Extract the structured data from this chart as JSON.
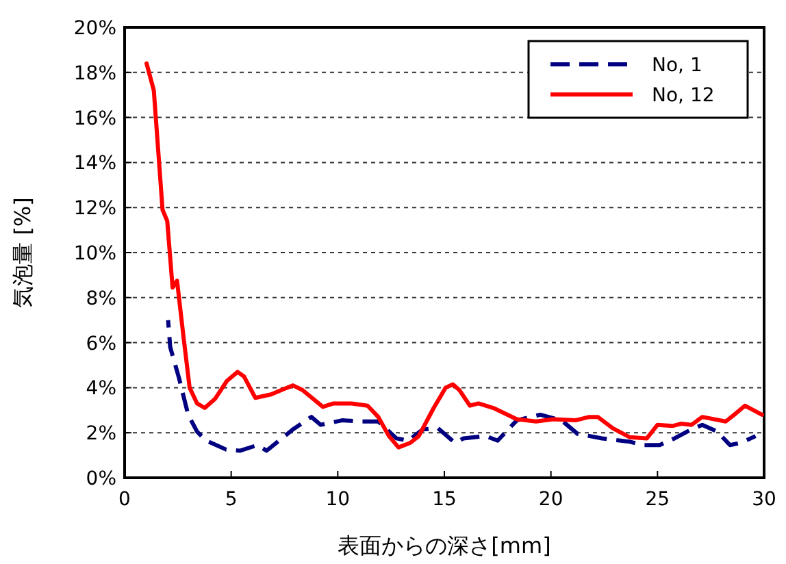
{
  "chart_data": {
    "type": "line",
    "xlabel": "表面からの深さ[mm]",
    "ylabel": "気泡量 [%]",
    "xlim": [
      0,
      30
    ],
    "xticks": [
      0,
      5,
      10,
      15,
      20,
      25,
      30
    ],
    "ylim": [
      0,
      20
    ],
    "yticks": [
      {
        "value": 0,
        "label": "0%"
      },
      {
        "value": 2,
        "label": "2%"
      },
      {
        "value": 4,
        "label": "4%"
      },
      {
        "value": 6,
        "label": "6%"
      },
      {
        "value": 8,
        "label": "8%"
      },
      {
        "value": 10,
        "label": "10%"
      },
      {
        "value": 12,
        "label": "12%"
      },
      {
        "value": 14,
        "label": "14%"
      },
      {
        "value": 16,
        "label": "16%"
      },
      {
        "value": 18,
        "label": "18%"
      },
      {
        "value": 20,
        "label": "20%"
      }
    ],
    "grid": "y",
    "legend": "top right",
    "marker": "none",
    "series": [
      {
        "name": "No, 1",
        "color": "#000080",
        "line_style": "dashed",
        "x": [
          2.04,
          2.14,
          2.56,
          2.98,
          3.4,
          3.82,
          4.77,
          5.4,
          6.24,
          6.66,
          7.9,
          8.76,
          9.2,
          10.2,
          11.07,
          11.9,
          12.75,
          13.3,
          14.0,
          14.7,
          15.5,
          15.9,
          16.95,
          17.5,
          18.4,
          19.5,
          20.5,
          21.25,
          22.4,
          23.7,
          24.3,
          25.1,
          25.8,
          26.6,
          27.1,
          27.8,
          28.4,
          28.9,
          29.6
        ],
        "values": [
          7.0,
          5.8,
          4.4,
          2.8,
          2.05,
          1.65,
          1.25,
          1.2,
          1.45,
          1.2,
          2.15,
          2.7,
          2.35,
          2.55,
          2.5,
          2.5,
          1.75,
          1.65,
          2.15,
          2.2,
          1.55,
          1.75,
          1.85,
          1.65,
          2.55,
          2.8,
          2.55,
          1.95,
          1.75,
          1.6,
          1.45,
          1.45,
          1.75,
          2.15,
          2.35,
          2.05,
          1.45,
          1.55,
          1.85
        ]
      },
      {
        "name": "No, 12",
        "color": "#ff0000",
        "line_style": "solid",
        "x": [
          1.03,
          1.37,
          1.78,
          2.0,
          2.25,
          2.46,
          2.77,
          3.05,
          3.4,
          3.76,
          4.24,
          4.8,
          5.3,
          5.6,
          6.13,
          6.87,
          7.5,
          7.9,
          8.34,
          9.3,
          9.8,
          10.65,
          11.4,
          11.9,
          12.4,
          12.85,
          13.4,
          13.8,
          14.5,
          15.06,
          15.4,
          15.7,
          16.2,
          16.6,
          17.3,
          18.4,
          19.3,
          20.1,
          21.15,
          21.8,
          22.2,
          22.9,
          23.7,
          24.5,
          25.0,
          25.7,
          26.1,
          26.6,
          27.1,
          28.2,
          28.6,
          29.1,
          29.9
        ],
        "values": [
          18.4,
          17.2,
          11.9,
          11.4,
          8.45,
          8.75,
          6.2,
          4.0,
          3.3,
          3.1,
          3.5,
          4.3,
          4.7,
          4.5,
          3.55,
          3.7,
          3.95,
          4.1,
          3.9,
          3.15,
          3.3,
          3.3,
          3.2,
          2.7,
          1.85,
          1.35,
          1.55,
          1.85,
          3.1,
          4.0,
          4.15,
          3.9,
          3.2,
          3.3,
          3.1,
          2.6,
          2.5,
          2.6,
          2.55,
          2.7,
          2.7,
          2.2,
          1.8,
          1.75,
          2.35,
          2.3,
          2.4,
          2.35,
          2.7,
          2.5,
          2.8,
          3.2,
          2.8
        ]
      }
    ]
  }
}
